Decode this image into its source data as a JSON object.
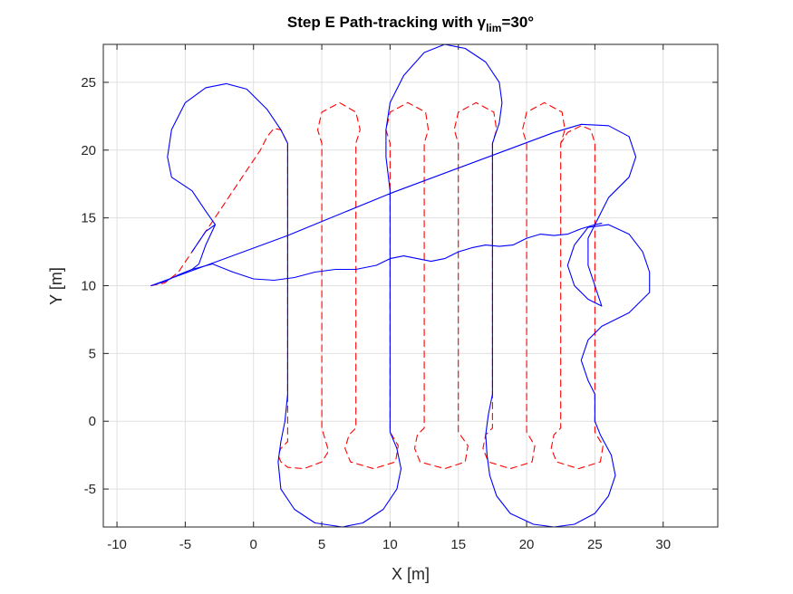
{
  "chart_data": {
    "type": "line",
    "title": {
      "prefix": "Step E  Path-tracking with ",
      "symbol": "γ",
      "subscript": "lim",
      "suffix": "=30°"
    },
    "xlabel": "X [m]",
    "ylabel": "Y [m]",
    "xlim": [
      -11,
      34
    ],
    "ylim": [
      -7.8,
      27.8
    ],
    "xticks": [
      -10,
      -5,
      0,
      5,
      10,
      15,
      20,
      25,
      30
    ],
    "yticks": [
      -5,
      0,
      5,
      10,
      15,
      20,
      25
    ],
    "grid": true,
    "box": true,
    "colors": {
      "reference": "#ff0000",
      "actual": "#0000ff",
      "grid": "#dfdfdf",
      "axes": "#262626"
    },
    "series": [
      {
        "style": "dashed",
        "color": "#ff0000",
        "points": [
          [
            -7.5,
            10
          ],
          [
            -6.5,
            10.2
          ],
          [
            -5.5,
            11
          ],
          [
            -4.5,
            12.5
          ],
          [
            -3.5,
            14
          ],
          [
            -2.5,
            15.5
          ],
          [
            -1.5,
            17
          ],
          [
            -0.5,
            18.5
          ],
          [
            0.5,
            20
          ],
          [
            1.0,
            21.0
          ],
          [
            1.5,
            21.6
          ],
          [
            2.0,
            21.5
          ],
          [
            2.5,
            20.5
          ],
          [
            2.5,
            0
          ],
          [
            2.5,
            -1.5
          ],
          [
            2.0,
            -2.0
          ],
          [
            1.8,
            -2.5
          ],
          [
            2.0,
            -3.0
          ],
          [
            2.5,
            -3.4
          ],
          [
            3.7,
            -3.5
          ],
          [
            5.0,
            -3.0
          ],
          [
            5.5,
            -2.2
          ],
          [
            5.2,
            -1.2
          ],
          [
            5.0,
            -0.5
          ],
          [
            5.0,
            20.5
          ],
          [
            4.7,
            21.5
          ],
          [
            5.0,
            22.8
          ],
          [
            6.3,
            23.5
          ],
          [
            7.5,
            22.8
          ],
          [
            7.8,
            21.5
          ],
          [
            7.5,
            20.5
          ],
          [
            7.5,
            -0.5
          ],
          [
            7.0,
            -1.0
          ],
          [
            6.7,
            -2.0
          ],
          [
            7.1,
            -3.0
          ],
          [
            8.8,
            -3.5
          ],
          [
            10.4,
            -3.0
          ],
          [
            10.6,
            -1.8
          ],
          [
            10.0,
            -0.8
          ],
          [
            10.0,
            20.5
          ],
          [
            9.7,
            21.5
          ],
          [
            10.0,
            22.8
          ],
          [
            11.3,
            23.5
          ],
          [
            12.6,
            22.8
          ],
          [
            12.8,
            21.5
          ],
          [
            12.5,
            20.5
          ],
          [
            12.5,
            -0.5
          ],
          [
            12.0,
            -1.0
          ],
          [
            11.8,
            -2.0
          ],
          [
            12.2,
            -3.0
          ],
          [
            14.0,
            -3.5
          ],
          [
            15.5,
            -3.0
          ],
          [
            15.7,
            -1.8
          ],
          [
            15.0,
            -0.8
          ],
          [
            15.0,
            20.5
          ],
          [
            14.7,
            21.5
          ],
          [
            15.0,
            22.8
          ],
          [
            16.3,
            23.5
          ],
          [
            17.6,
            22.8
          ],
          [
            17.8,
            21.5
          ],
          [
            17.5,
            20.5
          ],
          [
            17.5,
            -0.5
          ],
          [
            17.0,
            -1.0
          ],
          [
            16.8,
            -2.0
          ],
          [
            17.2,
            -3.0
          ],
          [
            18.8,
            -3.5
          ],
          [
            20.4,
            -3.0
          ],
          [
            20.6,
            -1.8
          ],
          [
            20.0,
            -0.8
          ],
          [
            20.0,
            20.5
          ],
          [
            19.7,
            21.5
          ],
          [
            20.0,
            22.8
          ],
          [
            21.3,
            23.5
          ],
          [
            22.6,
            22.8
          ],
          [
            22.8,
            21.5
          ],
          [
            22.5,
            20.5
          ],
          [
            22.5,
            -0.5
          ],
          [
            22.0,
            -1.0
          ],
          [
            21.8,
            -2.0
          ],
          [
            22.2,
            -3.0
          ],
          [
            23.8,
            -3.5
          ],
          [
            25.4,
            -3.0
          ],
          [
            25.6,
            -1.8
          ],
          [
            25.0,
            -0.8
          ],
          [
            25.0,
            20.5
          ],
          [
            24.7,
            21.5
          ],
          [
            24.0,
            21.8
          ],
          [
            23.0,
            21.3
          ],
          [
            22.5,
            20.5
          ]
        ]
      },
      {
        "style": "solid",
        "color": "#0000ff",
        "points": [
          [
            -7.5,
            10
          ],
          [
            -6.5,
            10.3
          ],
          [
            -5.5,
            10.8
          ],
          [
            -4.5,
            11.2
          ],
          [
            -4.0,
            11.6
          ],
          [
            -3.5,
            13
          ],
          [
            -2.8,
            14.5
          ],
          [
            -3.5,
            15.5
          ],
          [
            -4.5,
            17
          ],
          [
            -6.0,
            18
          ],
          [
            -6.3,
            19.5
          ],
          [
            -6.0,
            21.5
          ],
          [
            -5.0,
            23.5
          ],
          [
            -3.5,
            24.6
          ],
          [
            -2.0,
            24.9
          ],
          [
            -0.5,
            24.5
          ],
          [
            1.0,
            23.0
          ],
          [
            2.0,
            21.5
          ],
          [
            2.5,
            20.5
          ],
          [
            2.5,
            2.0
          ],
          [
            2.3,
            0
          ],
          [
            2.0,
            -1.5
          ],
          [
            1.8,
            -3.0
          ],
          [
            2.0,
            -5.0
          ],
          [
            3.0,
            -6.5
          ],
          [
            4.5,
            -7.5
          ],
          [
            6.5,
            -7.8
          ],
          [
            8.0,
            -7.5
          ],
          [
            9.5,
            -6.5
          ],
          [
            10.5,
            -5.0
          ],
          [
            10.8,
            -3.5
          ],
          [
            10.5,
            -2.0
          ],
          [
            10.0,
            -0.8
          ],
          [
            10.0,
            17.0
          ],
          [
            9.7,
            19.5
          ],
          [
            9.7,
            21.5
          ],
          [
            10.0,
            23.5
          ],
          [
            11.0,
            25.5
          ],
          [
            12.5,
            27.2
          ],
          [
            14.0,
            27.8
          ],
          [
            15.5,
            27.5
          ],
          [
            17.0,
            26.5
          ],
          [
            18.0,
            25.0
          ],
          [
            18.2,
            23.5
          ],
          [
            18.0,
            22.0
          ],
          [
            17.5,
            20.5
          ],
          [
            17.5,
            2.0
          ],
          [
            17.2,
            0.5
          ],
          [
            17.0,
            -1.0
          ],
          [
            17.1,
            -2.5
          ],
          [
            17.3,
            -4.0
          ],
          [
            17.8,
            -5.5
          ],
          [
            18.8,
            -6.8
          ],
          [
            20.5,
            -7.6
          ],
          [
            22.0,
            -7.8
          ],
          [
            23.5,
            -7.6
          ],
          [
            25.0,
            -6.8
          ],
          [
            26.0,
            -5.5
          ],
          [
            26.5,
            -4.0
          ],
          [
            26.2,
            -2.5
          ],
          [
            25.4,
            -1.0
          ],
          [
            25.0,
            0.0
          ],
          [
            25.0,
            2.0
          ],
          [
            24.5,
            3.0
          ],
          [
            24.0,
            4.5
          ],
          [
            24.5,
            6.0
          ],
          [
            25.5,
            7.0
          ],
          [
            27.5,
            8.0
          ],
          [
            29.0,
            9.5
          ],
          [
            29.0,
            11.0
          ],
          [
            28.5,
            12.5
          ],
          [
            27.5,
            13.8
          ],
          [
            26.0,
            14.5
          ],
          [
            24.5,
            14.3
          ],
          [
            23.5,
            13.0
          ],
          [
            23.0,
            11.5
          ],
          [
            23.5,
            10.0
          ],
          [
            24.5,
            9.0
          ],
          [
            25.5,
            8.5
          ],
          [
            25.0,
            10.0
          ],
          [
            24.5,
            11.5
          ],
          [
            24.5,
            13.5
          ],
          [
            25.5,
            15.5
          ],
          [
            26.0,
            16.5
          ],
          [
            27.5,
            18.0
          ],
          [
            28.0,
            19.5
          ],
          [
            27.5,
            21.0
          ],
          [
            26.0,
            21.8
          ],
          [
            24.0,
            21.9
          ],
          [
            22.0,
            21.3
          ],
          [
            10.0,
            16.8
          ],
          [
            2.5,
            13.7
          ],
          [
            -7.5,
            10
          ]
        ]
      },
      {
        "style": "solid",
        "color": "#0000ff",
        "points": [
          [
            -4.5,
            11.2
          ],
          [
            -3.0,
            11.6
          ],
          [
            -1.5,
            11.0
          ],
          [
            0.0,
            10.5
          ],
          [
            1.5,
            10.4
          ],
          [
            3.0,
            10.6
          ],
          [
            4.5,
            11.0
          ],
          [
            6.0,
            11.2
          ],
          [
            7.5,
            11.2
          ],
          [
            9.0,
            11.5
          ],
          [
            10.0,
            12.0
          ],
          [
            11.0,
            12.2
          ],
          [
            12.0,
            12.0
          ],
          [
            13.0,
            11.8
          ],
          [
            14.0,
            12.0
          ],
          [
            15.0,
            12.5
          ],
          [
            16.0,
            12.8
          ],
          [
            17.0,
            13.0
          ],
          [
            18.0,
            12.9
          ],
          [
            19.0,
            13.0
          ],
          [
            20.0,
            13.5
          ],
          [
            21.0,
            13.8
          ],
          [
            22.0,
            13.7
          ],
          [
            23.0,
            13.8
          ],
          [
            24.0,
            14.2
          ],
          [
            25.0,
            14.5
          ],
          [
            25.5,
            14.6
          ]
        ]
      },
      {
        "style": "solid",
        "color": "#0000ff",
        "points": [
          [
            -2.8,
            14.5
          ],
          [
            -3.5,
            14
          ],
          [
            -4.5,
            12.5
          ]
        ]
      }
    ]
  }
}
